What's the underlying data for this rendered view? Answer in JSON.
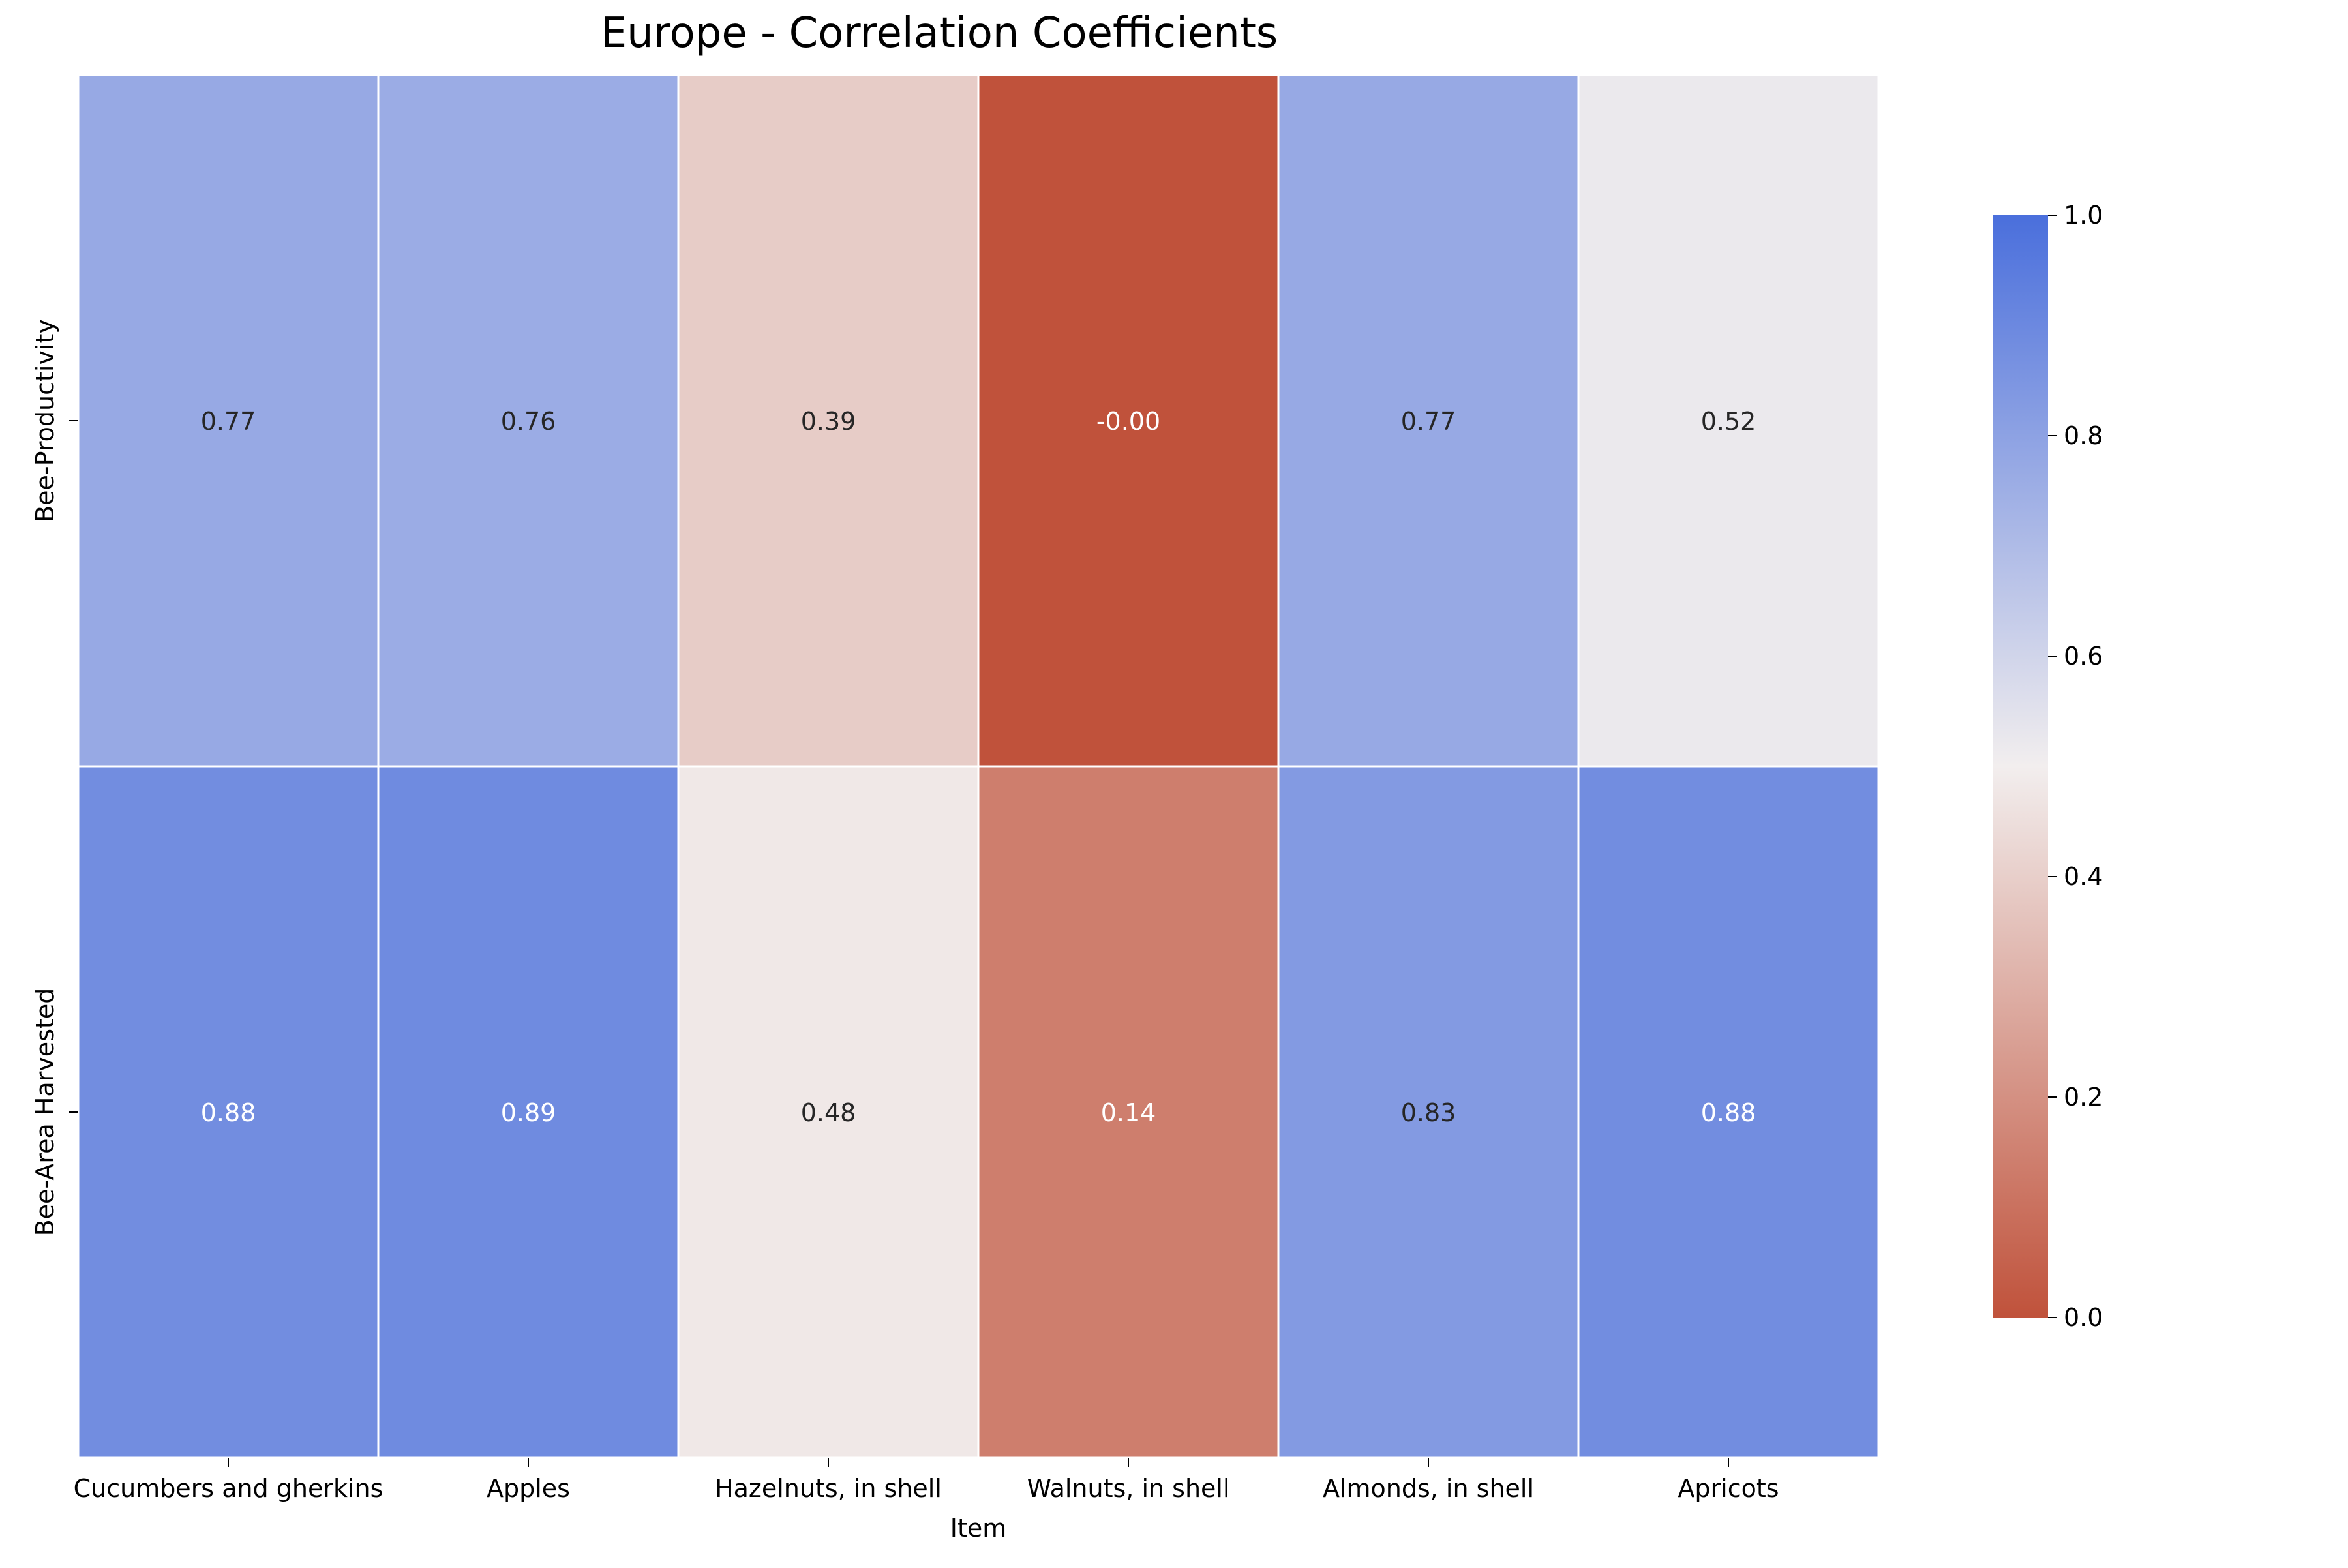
{
  "chart_data": {
    "type": "heatmap",
    "title": "Europe - Correlation Coefficients",
    "xlabel": "Item",
    "ylabel": "",
    "x_categories": [
      "Cucumbers and gherkins",
      "Apples",
      "Hazelnuts, in shell",
      "Walnuts, in shell",
      "Almonds, in shell",
      "Apricots"
    ],
    "y_categories": [
      "Bee-Productivity",
      "Bee-Area Harvested"
    ],
    "values": [
      [
        0.77,
        0.76,
        0.39,
        -0.0,
        0.77,
        0.52
      ],
      [
        0.88,
        0.89,
        0.48,
        0.14,
        0.83,
        0.88
      ]
    ],
    "value_labels": [
      [
        "0.77",
        "0.76",
        "0.39",
        "-0.00",
        "0.77",
        "0.52"
      ],
      [
        "0.88",
        "0.89",
        "0.48",
        "0.14",
        "0.83",
        "0.88"
      ]
    ],
    "colorbar": {
      "min": 0.0,
      "max": 1.0,
      "ticks": [
        "0.0",
        "0.2",
        "0.4",
        "0.6",
        "0.8",
        "1.0"
      ],
      "colors": [
        "#c0523b",
        "#f2eeee",
        "#4a6fdc"
      ]
    },
    "grid": false,
    "legend": "colorbar-right"
  }
}
